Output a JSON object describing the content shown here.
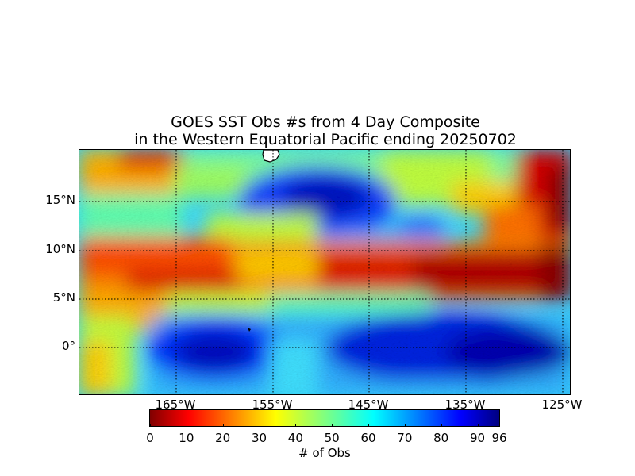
{
  "title_line1": "GOES SST Obs #s from 4 Day Composite",
  "title_line2": "in the Western Equatorial Pacific ending 20250702",
  "latitude_labels": [
    "15°N",
    "10°N",
    "5°N",
    "0°"
  ],
  "longitude_labels": [
    "165°W",
    "155°W",
    "145°W",
    "135°W",
    "125°W"
  ],
  "colorbar": {
    "label": "# of Obs",
    "ticks": [
      "0",
      "10",
      "20",
      "30",
      "40",
      "50",
      "60",
      "70",
      "80",
      "90",
      "96"
    ],
    "min": 0,
    "max": 96,
    "colormap": "jet"
  },
  "map": {
    "lon_range": [
      -175,
      -124
    ],
    "lat_range": [
      -5,
      20
    ],
    "gridlines": "dotted",
    "land_color": "#ffffff",
    "coast_color": "#000000"
  }
}
